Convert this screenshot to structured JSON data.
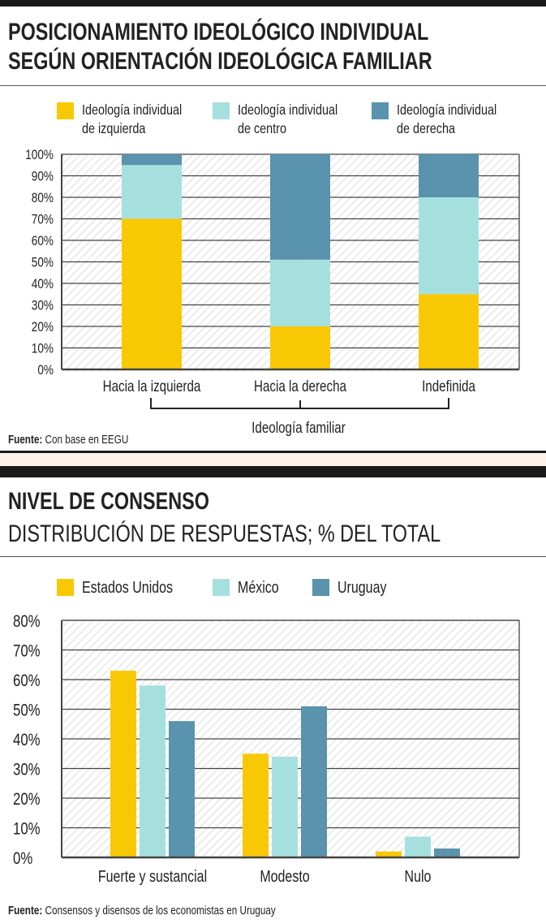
{
  "colors": {
    "left": "#f9c805",
    "center": "#a6e0de",
    "right": "#5a93ad",
    "grid": "#444444",
    "hatch": "#e3e3e3",
    "band": "#fdf3ea"
  },
  "chart_data": [
    {
      "type": "bar",
      "stacked": true,
      "title": [
        "POSICIONAMIENTO IDEOLÓGICO INDIVIDUAL",
        "SEGÚN ORIENTACIÓN IDEOLÓGICA FAMILIAR"
      ],
      "categories": [
        "Hacia la izquierda",
        "Hacia la derecha",
        "Indefinida"
      ],
      "xlabel": "Ideología familiar",
      "ylim": [
        0,
        100
      ],
      "yticks": [
        "0%",
        "10%",
        "20%",
        "30%",
        "40%",
        "50%",
        "60%",
        "70%",
        "80%",
        "90%",
        "100%"
      ],
      "series": [
        {
          "name": "Ideología individual de izquierda",
          "name_lines": [
            "Ideología individual",
            "de izquierda"
          ],
          "values": [
            70,
            20,
            35
          ]
        },
        {
          "name": "Ideología individual de centro",
          "name_lines": [
            "Ideología individual",
            "de centro"
          ],
          "values": [
            25,
            31,
            45
          ]
        },
        {
          "name": "Ideología individual de derecha",
          "name_lines": [
            "Ideología individual",
            "de derecha"
          ],
          "values": [
            5,
            49,
            20
          ]
        }
      ],
      "grid": true,
      "legend": "top",
      "source_label": "Fuente:",
      "source": "Con base en EEGU"
    },
    {
      "type": "bar",
      "title": "NIVEL DE CONSENSO",
      "subtitle": "DISTRIBUCIÓN DE RESPUESTAS; % DEL TOTAL",
      "categories": [
        "Fuerte y sustancial",
        "Modesto",
        "Nulo"
      ],
      "ylim": [
        0,
        80
      ],
      "yticks": [
        "0%",
        "10%",
        "20%",
        "30%",
        "40%",
        "50%",
        "60%",
        "70%",
        "80%"
      ],
      "series": [
        {
          "name": "Estados Unidos",
          "values": [
            63,
            35,
            2
          ]
        },
        {
          "name": "México",
          "values": [
            58,
            34,
            7
          ]
        },
        {
          "name": "Uruguay",
          "values": [
            46,
            51,
            3
          ]
        }
      ],
      "grid": true,
      "legend": "top",
      "source_label": "Fuente:",
      "source": "Consensos y disensos de los economistas en Uruguay"
    }
  ]
}
